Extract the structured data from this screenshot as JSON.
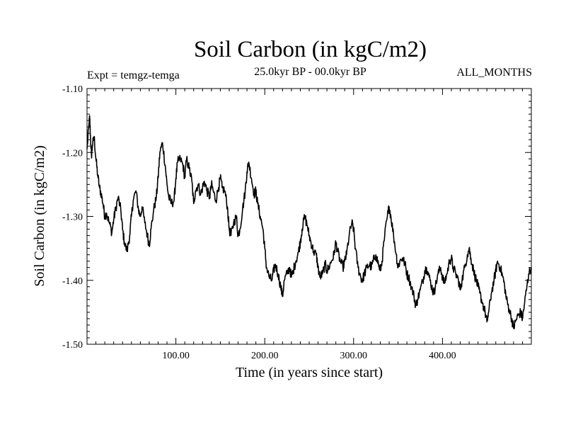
{
  "chart_data": {
    "type": "line",
    "title": "Soil Carbon (in kgC/m2)",
    "subtitle_left": "Expt = temgz-temga",
    "subtitle_center": "25.0kyr BP - 00.0kyr BP",
    "subtitle_right": "ALL_MONTHS",
    "xlabel": "Time (in years since start)",
    "ylabel": "Soil Carbon (in kgC/m2)",
    "xlim": [
      0,
      500
    ],
    "ylim": [
      -1.5,
      -1.1
    ],
    "xticks": [
      100,
      200,
      300,
      400
    ],
    "xtick_labels": [
      "100.00",
      "200.00",
      "300.00",
      "400.00"
    ],
    "yticks": [
      -1.1,
      -1.2,
      -1.3,
      -1.4,
      -1.5
    ],
    "ytick_labels": [
      "-1.10",
      "-1.20",
      "-1.30",
      "-1.40",
      "-1.50"
    ],
    "series": [
      {
        "name": "Soil Carbon",
        "color": "#000000",
        "x": [
          0,
          2,
          3,
          4,
          5,
          6,
          8,
          10,
          12,
          14,
          16,
          18,
          20,
          22,
          25,
          28,
          30,
          32,
          35,
          38,
          40,
          42,
          45,
          48,
          50,
          52,
          55,
          58,
          60,
          62,
          65,
          68,
          70,
          72,
          75,
          78,
          80,
          82,
          85,
          88,
          90,
          92,
          95,
          98,
          100,
          102,
          105,
          108,
          110,
          112,
          115,
          118,
          120,
          122,
          125,
          128,
          130,
          132,
          135,
          138,
          140,
          142,
          145,
          148,
          150,
          152,
          155,
          158,
          160,
          162,
          165,
          168,
          170,
          172,
          175,
          178,
          180,
          182,
          185,
          188,
          190,
          192,
          195,
          198,
          200,
          202,
          205,
          208,
          210,
          212,
          215,
          218,
          220,
          222,
          225,
          228,
          230,
          232,
          235,
          238,
          240,
          242,
          245,
          248,
          250,
          252,
          255,
          258,
          260,
          262,
          265,
          268,
          270,
          272,
          275,
          278,
          280,
          282,
          285,
          288,
          290,
          292,
          295,
          298,
          300,
          302,
          305,
          308,
          310,
          312,
          315,
          318,
          320,
          322,
          325,
          328,
          330,
          332,
          335,
          338,
          340,
          342,
          345,
          348,
          350,
          352,
          355,
          358,
          360,
          362,
          365,
          368,
          370,
          372,
          375,
          378,
          380,
          382,
          385,
          388,
          390,
          392,
          395,
          398,
          400,
          402,
          405,
          408,
          410,
          412,
          415,
          418,
          420,
          422,
          425,
          428,
          430,
          432,
          435,
          438,
          440,
          442,
          445,
          448,
          450,
          452,
          455,
          458,
          460,
          462,
          465,
          468,
          470,
          472,
          475,
          478,
          480,
          482,
          485,
          488,
          490,
          492,
          495,
          497,
          500
        ],
        "values": [
          -1.195,
          -1.16,
          -1.145,
          -1.18,
          -1.205,
          -1.19,
          -1.175,
          -1.21,
          -1.235,
          -1.255,
          -1.265,
          -1.28,
          -1.3,
          -1.295,
          -1.31,
          -1.325,
          -1.305,
          -1.29,
          -1.27,
          -1.29,
          -1.32,
          -1.34,
          -1.355,
          -1.33,
          -1.3,
          -1.275,
          -1.26,
          -1.29,
          -1.3,
          -1.285,
          -1.31,
          -1.33,
          -1.345,
          -1.32,
          -1.29,
          -1.27,
          -1.24,
          -1.2,
          -1.185,
          -1.22,
          -1.25,
          -1.27,
          -1.28,
          -1.275,
          -1.24,
          -1.215,
          -1.21,
          -1.22,
          -1.24,
          -1.21,
          -1.225,
          -1.245,
          -1.28,
          -1.26,
          -1.25,
          -1.265,
          -1.255,
          -1.245,
          -1.26,
          -1.27,
          -1.25,
          -1.26,
          -1.275,
          -1.255,
          -1.24,
          -1.255,
          -1.26,
          -1.285,
          -1.32,
          -1.33,
          -1.31,
          -1.3,
          -1.33,
          -1.32,
          -1.29,
          -1.26,
          -1.23,
          -1.215,
          -1.24,
          -1.265,
          -1.26,
          -1.28,
          -1.3,
          -1.32,
          -1.35,
          -1.38,
          -1.395,
          -1.4,
          -1.385,
          -1.375,
          -1.39,
          -1.41,
          -1.425,
          -1.4,
          -1.39,
          -1.38,
          -1.395,
          -1.385,
          -1.37,
          -1.355,
          -1.34,
          -1.32,
          -1.3,
          -1.315,
          -1.33,
          -1.34,
          -1.355,
          -1.36,
          -1.38,
          -1.395,
          -1.39,
          -1.375,
          -1.385,
          -1.38,
          -1.37,
          -1.36,
          -1.34,
          -1.355,
          -1.37,
          -1.38,
          -1.37,
          -1.36,
          -1.33,
          -1.31,
          -1.32,
          -1.35,
          -1.38,
          -1.395,
          -1.4,
          -1.39,
          -1.38,
          -1.375,
          -1.38,
          -1.37,
          -1.36,
          -1.375,
          -1.385,
          -1.37,
          -1.33,
          -1.3,
          -1.285,
          -1.3,
          -1.33,
          -1.36,
          -1.38,
          -1.37,
          -1.365,
          -1.375,
          -1.39,
          -1.395,
          -1.41,
          -1.425,
          -1.44,
          -1.43,
          -1.415,
          -1.4,
          -1.385,
          -1.38,
          -1.395,
          -1.41,
          -1.42,
          -1.41,
          -1.39,
          -1.38,
          -1.395,
          -1.405,
          -1.39,
          -1.37,
          -1.365,
          -1.38,
          -1.39,
          -1.4,
          -1.415,
          -1.4,
          -1.38,
          -1.36,
          -1.35,
          -1.365,
          -1.385,
          -1.4,
          -1.41,
          -1.42,
          -1.435,
          -1.45,
          -1.465,
          -1.45,
          -1.42,
          -1.4,
          -1.385,
          -1.37,
          -1.38,
          -1.395,
          -1.41,
          -1.43,
          -1.445,
          -1.46,
          -1.475,
          -1.465,
          -1.455,
          -1.45,
          -1.46,
          -1.44,
          -1.41,
          -1.39,
          -1.38
        ]
      }
    ]
  }
}
